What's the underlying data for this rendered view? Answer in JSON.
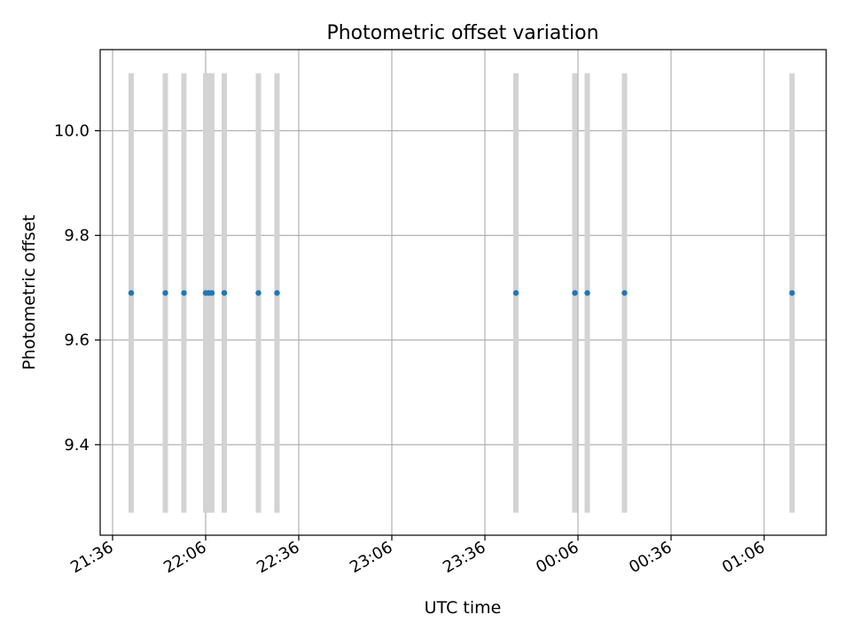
{
  "chart_data": {
    "type": "scatter",
    "title": "Photometric offset variation",
    "xlabel": "UTC time",
    "ylabel": "Photometric offset",
    "x_axis": {
      "kind": "time",
      "xlim": [
        "21:32",
        "01:26"
      ],
      "tick_labels": [
        "21:36",
        "22:06",
        "22:36",
        "23:06",
        "23:36",
        "00:06",
        "00:36",
        "01:06"
      ],
      "tick_values": [
        "21:36",
        "22:06",
        "22:36",
        "23:06",
        "23:36",
        "00:06",
        "00:36",
        "01:06"
      ]
    },
    "y_axis": {
      "ylim": [
        9.227,
        10.155
      ],
      "tick_labels": [
        "9.4",
        "9.6",
        "9.8",
        "10.0"
      ],
      "tick_values": [
        9.4,
        9.6,
        9.8,
        10.0
      ]
    },
    "grid": true,
    "series": [
      {
        "x": [
          "21:42",
          "21:53",
          "21:59",
          "22:06",
          "22:07",
          "22:08",
          "22:12",
          "22:23",
          "22:29",
          "23:46",
          "00:05",
          "00:09",
          "00:21",
          "01:15"
        ],
        "y": [
          9.69,
          9.69,
          9.69,
          9.69,
          9.69,
          9.69,
          9.69,
          9.69,
          9.69,
          9.69,
          9.69,
          9.69,
          9.69,
          9.69
        ],
        "error_low": [
          9.27,
          9.27,
          9.27,
          9.27,
          9.27,
          9.27,
          9.27,
          9.27,
          9.27,
          9.27,
          9.27,
          9.27,
          9.27,
          9.27
        ],
        "error_high": [
          10.11,
          10.11,
          10.11,
          10.11,
          10.11,
          10.11,
          10.11,
          10.11,
          10.11,
          10.11,
          10.11,
          10.11,
          10.11,
          10.11
        ]
      }
    ],
    "colors": {
      "points": "#1f77b4",
      "error_bars": "#d3d3d3",
      "grid": "#b0b0b0"
    }
  }
}
